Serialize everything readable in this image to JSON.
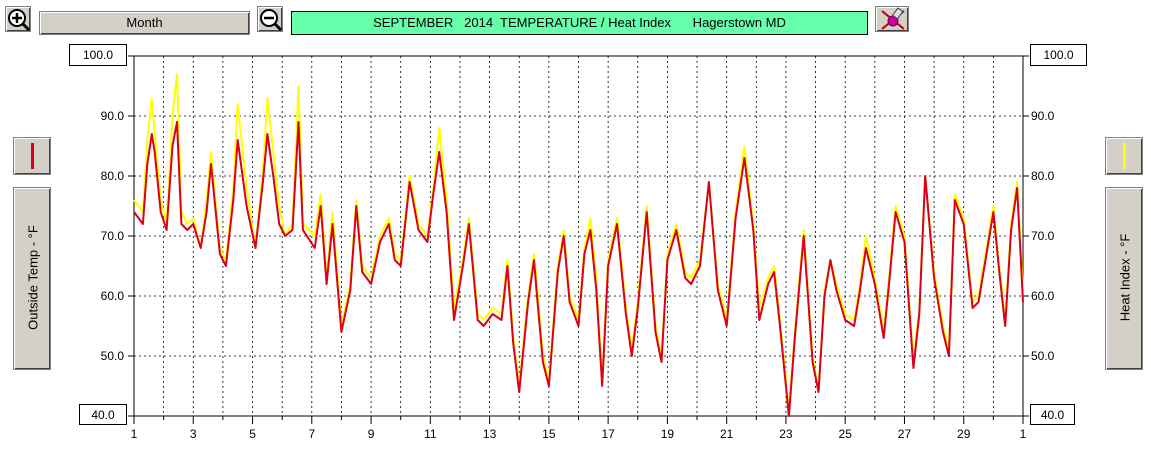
{
  "toolbar": {
    "zoom_in_icon": "zoom-in-icon",
    "month_label": "Month",
    "zoom_out_icon": "zoom-out-icon",
    "title": "SEPTEMBER   2014  TEMPERATURE / Heat Index      Hagerstown MD",
    "tool_icon": "paint-tool-icon"
  },
  "left_axis": {
    "max_box": "100.0",
    "min_box": "40.0",
    "series_label": "Outside Temp - °F",
    "swatch_color": "#d8001c"
  },
  "right_axis": {
    "max_box": "100.0",
    "min_box": "40.0",
    "series_label": "Heat Index - °F",
    "swatch_color": "#ffff00"
  },
  "chart_data": {
    "type": "line",
    "title": "SEPTEMBER   2014  TEMPERATURE / Heat Index      Hagerstown MD",
    "ylim": [
      40,
      100
    ],
    "y_ticks": [
      "100.0",
      "90.0",
      "80.0",
      "70.0",
      "60.0",
      "50.0",
      "40.0"
    ],
    "x_tick_labels": [
      "1",
      "3",
      "5",
      "7",
      "9",
      "11",
      "13",
      "15",
      "17",
      "19",
      "21",
      "23",
      "25",
      "27",
      "29",
      "1"
    ],
    "x_unit": "day of month",
    "grid": true,
    "series": [
      {
        "name": "Heat Index - °F",
        "color": "#ffff00",
        "x": [
          1.0,
          1.3,
          1.45,
          1.6,
          1.7,
          1.9,
          2.1,
          2.3,
          2.45,
          2.6,
          2.8,
          3.0,
          3.25,
          3.45,
          3.6,
          3.9,
          4.1,
          4.35,
          4.5,
          4.8,
          5.1,
          5.35,
          5.5,
          5.7,
          5.9,
          6.1,
          6.35,
          6.55,
          6.7,
          7.1,
          7.3,
          7.5,
          7.7,
          8.0,
          8.3,
          8.5,
          8.7,
          9.0,
          9.3,
          9.6,
          9.8,
          10.0,
          10.3,
          10.6,
          10.9,
          11.1,
          11.3,
          11.55,
          11.8,
          12.1,
          12.3,
          12.6,
          12.8,
          13.1,
          13.4,
          13.6,
          13.8,
          14.0,
          14.3,
          14.5,
          14.6,
          14.8,
          15.0,
          15.3,
          15.5,
          15.7,
          16.0,
          16.2,
          16.4,
          16.6,
          16.8,
          17.0,
          17.3,
          17.6,
          17.8,
          18.0,
          18.3,
          18.6,
          18.8,
          19.0,
          19.3,
          19.6,
          19.8,
          20.1,
          20.4,
          20.7,
          21.0,
          21.3,
          21.6,
          21.9,
          22.1,
          22.4,
          22.6,
          22.8,
          23.1,
          23.3,
          23.6,
          23.9,
          24.1,
          24.3,
          24.5,
          24.7,
          25.0,
          25.3,
          25.5,
          25.7,
          26.0,
          26.3,
          26.5,
          26.7,
          27.0,
          27.3,
          27.5,
          27.7,
          28.0,
          28.3,
          28.5,
          28.7,
          29.0,
          29.3,
          29.5,
          29.7,
          30.0,
          30.2,
          30.4,
          30.6,
          30.8,
          31.0
        ],
        "values": [
          76,
          74,
          86,
          93,
          87,
          76,
          72,
          90,
          97,
          74,
          72,
          73,
          68,
          76,
          84,
          68,
          66,
          78,
          92,
          78,
          68,
          81,
          93,
          84,
          75,
          70,
          72,
          95,
          72,
          70,
          77,
          63,
          74,
          55,
          62,
          76,
          65,
          63,
          70,
          73,
          67,
          66,
          80,
          72,
          70,
          78,
          88,
          76,
          58,
          66,
          73,
          57,
          56,
          58,
          57,
          66,
          53,
          45,
          60,
          67,
          62,
          50,
          46,
          65,
          71,
          60,
          56,
          68,
          73,
          63,
          46,
          66,
          73,
          58,
          51,
          59,
          75,
          55,
          50,
          67,
          72,
          64,
          63,
          66,
          79,
          62,
          56,
          74,
          85,
          72,
          58,
          63,
          65,
          56,
          41,
          54,
          71,
          50,
          44,
          61,
          66,
          62,
          57,
          56,
          62,
          70,
          63,
          54,
          64,
          75,
          70,
          49,
          58,
          80,
          64,
          55,
          51,
          77,
          73,
          59,
          60,
          66,
          75,
          65,
          56,
          72,
          79,
          61
        ]
      },
      {
        "name": "Outside Temp - °F",
        "color": "#d8001c",
        "x": [
          1.0,
          1.3,
          1.45,
          1.6,
          1.7,
          1.9,
          2.1,
          2.3,
          2.45,
          2.6,
          2.8,
          3.0,
          3.25,
          3.45,
          3.6,
          3.9,
          4.1,
          4.35,
          4.5,
          4.8,
          5.1,
          5.35,
          5.5,
          5.7,
          5.9,
          6.1,
          6.35,
          6.55,
          6.7,
          7.1,
          7.3,
          7.5,
          7.7,
          8.0,
          8.3,
          8.5,
          8.7,
          9.0,
          9.3,
          9.6,
          9.8,
          10.0,
          10.3,
          10.6,
          10.9,
          11.1,
          11.3,
          11.55,
          11.8,
          12.1,
          12.3,
          12.6,
          12.8,
          13.1,
          13.4,
          13.6,
          13.8,
          14.0,
          14.3,
          14.5,
          14.6,
          14.8,
          15.0,
          15.3,
          15.5,
          15.7,
          16.0,
          16.2,
          16.4,
          16.6,
          16.8,
          17.0,
          17.3,
          17.6,
          17.8,
          18.0,
          18.3,
          18.6,
          18.8,
          19.0,
          19.3,
          19.6,
          19.8,
          20.1,
          20.4,
          20.7,
          21.0,
          21.3,
          21.6,
          21.9,
          22.1,
          22.4,
          22.6,
          22.8,
          23.1,
          23.3,
          23.6,
          23.9,
          24.1,
          24.3,
          24.5,
          24.7,
          25.0,
          25.3,
          25.5,
          25.7,
          26.0,
          26.3,
          26.5,
          26.7,
          27.0,
          27.3,
          27.5,
          27.7,
          28.0,
          28.3,
          28.5,
          28.7,
          29.0,
          29.3,
          29.5,
          29.7,
          30.0,
          30.2,
          30.4,
          30.6,
          30.8,
          31.0
        ],
        "values": [
          74,
          72,
          82,
          87,
          84,
          74,
          71,
          85,
          89,
          72,
          71,
          72,
          68,
          74,
          82,
          67,
          65,
          76,
          86,
          75,
          68,
          79,
          87,
          80,
          72,
          70,
          71,
          89,
          71,
          68,
          75,
          62,
          72,
          54,
          61,
          75,
          64,
          62,
          69,
          72,
          66,
          65,
          79,
          71,
          69,
          77,
          84,
          74,
          56,
          65,
          72,
          56,
          55,
          57,
          56,
          65,
          52,
          44,
          59,
          66,
          60,
          49,
          45,
          64,
          70,
          59,
          55,
          67,
          71,
          61,
          45,
          65,
          72,
          57,
          50,
          58,
          74,
          54,
          49,
          66,
          71,
          63,
          62,
          65,
          79,
          61,
          55,
          73,
          83,
          71,
          56,
          62,
          64,
          55,
          40,
          53,
          70,
          49,
          44,
          60,
          66,
          61,
          56,
          55,
          61,
          68,
          62,
          53,
          63,
          74,
          69,
          48,
          57,
          80,
          63,
          54,
          50,
          76,
          72,
          58,
          59,
          65,
          74,
          64,
          55,
          71,
          78,
          59
        ]
      }
    ]
  }
}
